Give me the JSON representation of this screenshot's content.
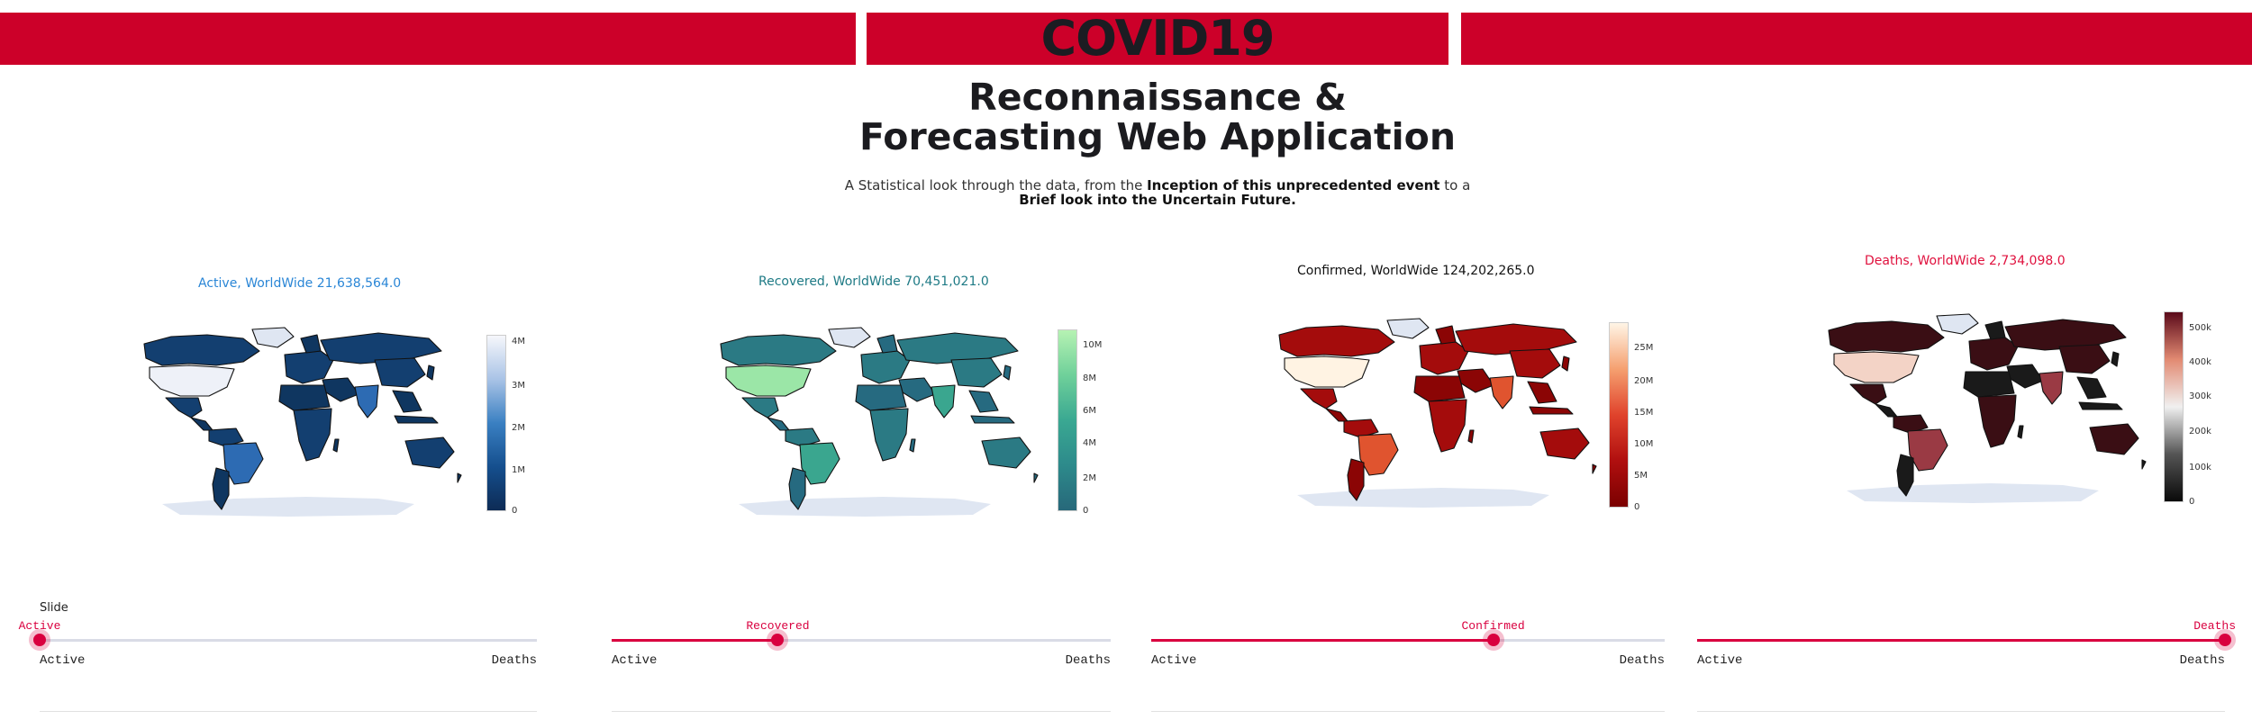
{
  "header": {
    "brand": "COVID19"
  },
  "headline": {
    "line1": "Reconnaissance &",
    "line2": "Forecasting Web Application"
  },
  "subtitle": {
    "part1": "A Statistical look through the data, from the ",
    "bold1": "Inception of this unprecedented event",
    "part2": " to a",
    "bold2": "Brief look into the Uncertain Future."
  },
  "slider_label": "Slide",
  "panels": [
    {
      "title": "Active, WorldWide 21,638,564.0",
      "title_color": "#2a86d6",
      "colorscale": [
        "#0d2b55",
        "#154f8e",
        "#3a80c2",
        "#a9c3e6",
        "#f6f7fb"
      ],
      "ticks": [
        "4M",
        "3M",
        "2M",
        "1M",
        "0"
      ],
      "tick_positions": [
        0.96,
        0.71,
        0.47,
        0.23,
        0.0
      ],
      "slider": {
        "value_label": "Active",
        "value": 0.0,
        "min_label": "Active",
        "max_label": "Deaths"
      },
      "palette": {
        "base": "#0f3660",
        "alt": "#133f70",
        "high": "#2d6bb3",
        "top": "#eef1f8"
      }
    },
    {
      "title": "Recovered, WorldWide 70,451,021.0",
      "title_color": "#1e7a85",
      "colorscale": [
        "#27687a",
        "#2d8a8b",
        "#3aa892",
        "#6fd09a",
        "#b6f2b3"
      ],
      "ticks": [
        "10M",
        "8M",
        "6M",
        "4M",
        "2M",
        "0"
      ],
      "tick_positions": [
        0.91,
        0.73,
        0.55,
        0.37,
        0.18,
        0.0
      ],
      "slider": {
        "value_label": "Recovered",
        "value": 0.333,
        "min_label": "Active",
        "max_label": "Deaths"
      },
      "palette": {
        "base": "#266a80",
        "alt": "#2b7a84",
        "high": "#3aa68f",
        "top": "#9be6a7"
      }
    },
    {
      "title": "Confirmed, WorldWide 124,202,265.0",
      "title_color": "#111111",
      "colorscale": [
        "#7a0000",
        "#b00f0f",
        "#e0432c",
        "#f5a070",
        "#fff5e6"
      ],
      "ticks": [
        "25M",
        "20M",
        "15M",
        "10M",
        "5M",
        "0"
      ],
      "tick_positions": [
        0.86,
        0.68,
        0.51,
        0.34,
        0.17,
        0.0
      ],
      "slider": {
        "value_label": "Confirmed",
        "value": 0.666,
        "min_label": "Active",
        "max_label": "Deaths"
      },
      "palette": {
        "base": "#8b0505",
        "alt": "#a40c0c",
        "high": "#e0542f",
        "top": "#fff3e3"
      }
    },
    {
      "title": "Deaths, WorldWide 2,734,098.0",
      "title_color": "#e0113e",
      "colorscale": [
        "#0a0a0a",
        "#555555",
        "#f0f0f0",
        "#e28a72",
        "#5b0a1a"
      ],
      "ticks": [
        "500k",
        "400k",
        "300k",
        "200k",
        "100k",
        "0"
      ],
      "tick_positions": [
        0.91,
        0.73,
        0.55,
        0.37,
        0.18,
        0.0
      ],
      "slider": {
        "value_label": "Deaths",
        "value": 1.0,
        "min_label": "Active",
        "max_label": "Deaths"
      },
      "palette": {
        "base": "#1a1a1a",
        "alt": "#3a0e14",
        "high": "#9a3a44",
        "top": "#f3d3c6"
      }
    }
  ]
}
